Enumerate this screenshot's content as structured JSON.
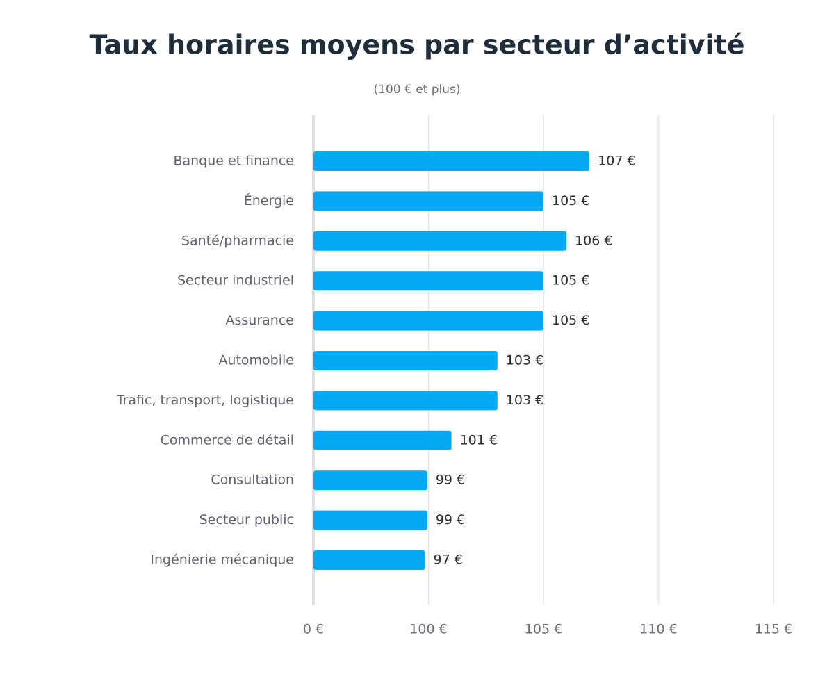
{
  "chart_data": {
    "type": "bar",
    "orientation": "horizontal",
    "title": "Taux horaires moyens par secteur d’activité",
    "subtitle": "(100 € et plus)",
    "categories": [
      "Banque et finance",
      "Énergie",
      "Santé/pharmacie",
      "Secteur industriel",
      "Assurance",
      "Automobile",
      "Trafic, transport, logistique",
      "Commerce de détail",
      "Consultation",
      "Secteur public",
      "Ingénierie mécanique"
    ],
    "values": [
      107,
      105,
      106,
      105,
      105,
      103,
      103,
      101,
      99,
      99,
      97
    ],
    "value_labels": [
      "107 €",
      "105 €",
      "106 €",
      "105 €",
      "105 €",
      "103 €",
      "103 €",
      "101 €",
      "99 €",
      "99 €",
      "97 €"
    ],
    "color": "#05a9f4",
    "xlim": [
      0,
      115
    ],
    "xticks": [
      {
        "value": 0,
        "label": "0 €"
      },
      {
        "value": 100,
        "label": "100 €"
      },
      {
        "value": 105,
        "label": "105 €"
      },
      {
        "value": 110,
        "label": "110 €"
      },
      {
        "value": 115,
        "label": "115 €"
      }
    ],
    "grid": true
  }
}
